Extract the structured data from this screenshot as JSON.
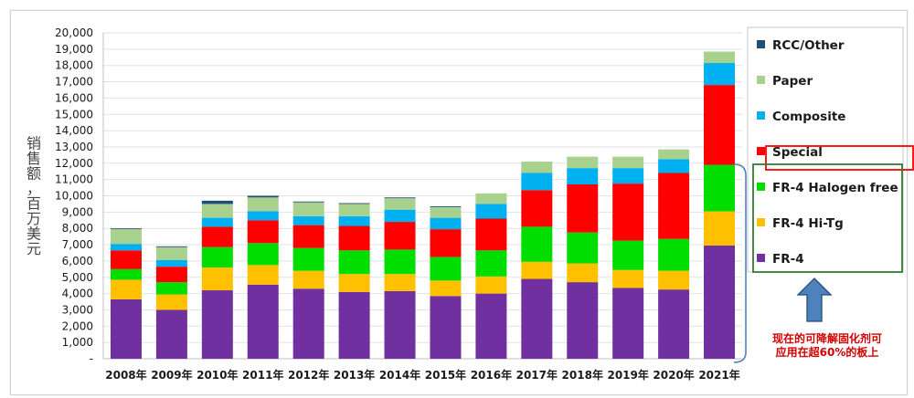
{
  "chart_data": {
    "type": "bar",
    "stacked": true,
    "ylabel": "销售额，百万美元",
    "ylim": [
      0,
      20000
    ],
    "yticks": [
      "20,000",
      "19,000",
      "18,000",
      "17,000",
      "16,000",
      "15,000",
      "14,000",
      "13,000",
      "12,000",
      "11,000",
      "10,000",
      "9,000",
      "8,000",
      "7,000",
      "6,000",
      "5,000",
      "4,000",
      "3,000",
      "2,000",
      "1,000",
      "-"
    ],
    "categories": [
      "2008年",
      "2009年",
      "2010年",
      "2011年",
      "2012年",
      "2013年",
      "2014年",
      "2015年",
      "2016年",
      "2017年",
      "2018年",
      "2019年",
      "2020年",
      "2021年"
    ],
    "series": [
      {
        "name": "FR-4",
        "color": "#7030a0",
        "values": [
          3650,
          3000,
          4200,
          4550,
          4300,
          4100,
          4150,
          3850,
          4000,
          4900,
          4700,
          4350,
          4250,
          6950
        ]
      },
      {
        "name": "FR-4 Hi-Tg",
        "color": "#ffc000",
        "values": [
          1200,
          950,
          1400,
          1200,
          1100,
          1100,
          1050,
          950,
          1050,
          1050,
          1150,
          1100,
          1150,
          2100
        ]
      },
      {
        "name": "FR-4 Halogen free",
        "color": "#00dd00",
        "values": [
          650,
          750,
          1250,
          1350,
          1400,
          1450,
          1500,
          1450,
          1600,
          2150,
          1900,
          1800,
          1950,
          2850
        ]
      },
      {
        "name": "Special",
        "color": "#ff0000",
        "values": [
          1150,
          950,
          1250,
          1400,
          1400,
          1500,
          1700,
          1700,
          1950,
          2250,
          2950,
          3500,
          4050,
          4900
        ]
      },
      {
        "name": "Composite",
        "color": "#00b0f0",
        "values": [
          400,
          400,
          550,
          550,
          550,
          600,
          750,
          700,
          900,
          1050,
          1000,
          950,
          850,
          1350
        ]
      },
      {
        "name": "Paper",
        "color": "#a9d18e",
        "values": [
          900,
          800,
          850,
          850,
          850,
          750,
          700,
          650,
          650,
          700,
          700,
          700,
          600,
          700
        ]
      },
      {
        "name": "RCC/Other",
        "color": "#1f4e79",
        "values": [
          50,
          50,
          200,
          100,
          50,
          50,
          50,
          50,
          0,
          0,
          0,
          0,
          0,
          0
        ]
      }
    ],
    "legend_position": "right",
    "annotation": [
      "现在的可降解固化剂可",
      "应用在超60%的板上"
    ]
  }
}
